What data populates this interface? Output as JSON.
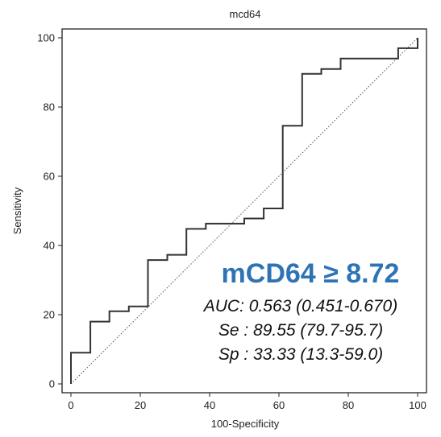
{
  "chart_data": {
    "type": "line",
    "title": "mcd64",
    "xlabel": "100-Specificity",
    "ylabel": "Sensitivity",
    "xlim": [
      0,
      100
    ],
    "ylim": [
      0,
      100
    ],
    "xticks": [
      "0",
      "20",
      "40",
      "60",
      "80",
      "100"
    ],
    "yticks": [
      "0",
      "20",
      "40",
      "60",
      "80",
      "100"
    ],
    "xtick_values": [
      0,
      20,
      40,
      60,
      80,
      100
    ],
    "ytick_values": [
      0,
      20,
      40,
      60,
      80,
      100
    ],
    "grid": false,
    "series": [
      {
        "style": "step",
        "color": "#333333",
        "points": [
          [
            0,
            0
          ],
          [
            0,
            9
          ],
          [
            5.6,
            9
          ],
          [
            5.6,
            18
          ],
          [
            11.1,
            18
          ],
          [
            11.1,
            21
          ],
          [
            16.7,
            21
          ],
          [
            16.7,
            22.4
          ],
          [
            22.2,
            22.4
          ],
          [
            22.2,
            35.8
          ],
          [
            27.8,
            35.8
          ],
          [
            27.8,
            37.3
          ],
          [
            33.3,
            37.3
          ],
          [
            33.3,
            44.8
          ],
          [
            38.9,
            44.8
          ],
          [
            38.9,
            46.3
          ],
          [
            50,
            46.3
          ],
          [
            50,
            47.8
          ],
          [
            55.6,
            47.8
          ],
          [
            55.6,
            50.7
          ],
          [
            61.1,
            50.7
          ],
          [
            61.1,
            74.6
          ],
          [
            66.7,
            74.6
          ],
          [
            66.7,
            89.6
          ],
          [
            72.2,
            89.6
          ],
          [
            72.2,
            91
          ],
          [
            77.8,
            91
          ],
          [
            77.8,
            94
          ],
          [
            94.4,
            94
          ],
          [
            94.4,
            97
          ],
          [
            100,
            97
          ],
          [
            100,
            100
          ]
        ]
      },
      {
        "style": "dotted",
        "color": "#555555",
        "points": [
          [
            0,
            0
          ],
          [
            100,
            100
          ]
        ]
      }
    ],
    "annotations": {
      "cutoff": "mCD64 ≥ 8.72",
      "auc": "AUC: 0.563 (0.451-0.670)",
      "se": "Se : 89.55 (79.7-95.7)",
      "sp": "Sp : 33.33 (13.3-59.0)"
    },
    "colors": {
      "cutoff": "#2e74b5",
      "annotation": "#111111"
    }
  }
}
